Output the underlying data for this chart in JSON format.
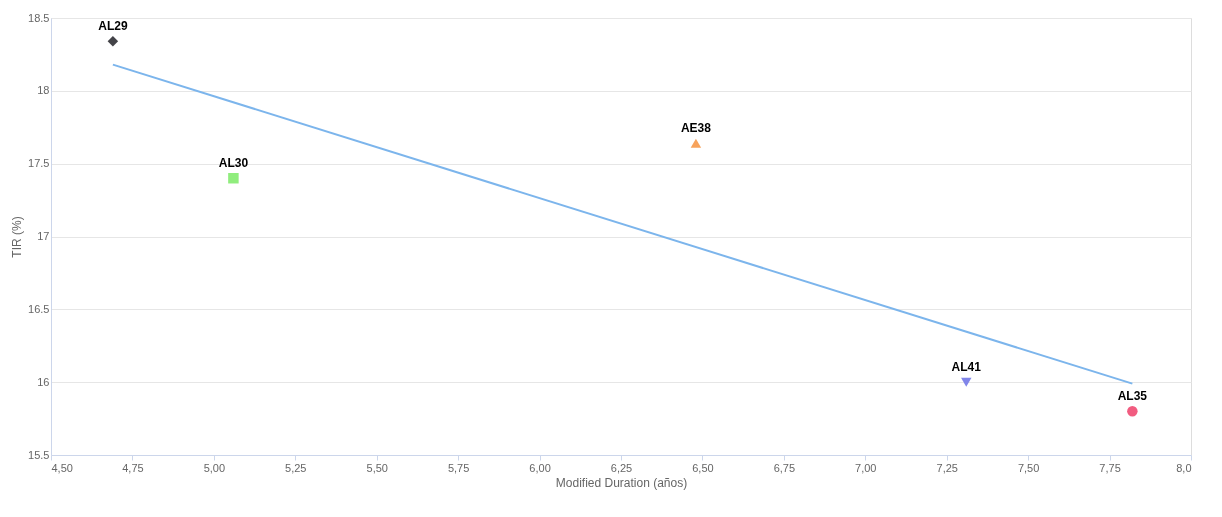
{
  "chart_data": {
    "type": "scatter",
    "xlabel": "Modified Duration (años)",
    "ylabel": "TIR (%)",
    "xlim": [
      4.5,
      8.0
    ],
    "xticks": [
      {
        "value": 4.5,
        "label": "4,50"
      },
      {
        "value": 4.75,
        "label": "4,75"
      },
      {
        "value": 5.0,
        "label": "5,00"
      },
      {
        "value": 5.25,
        "label": "5,25"
      },
      {
        "value": 5.5,
        "label": "5,50"
      },
      {
        "value": 5.75,
        "label": "5,75"
      },
      {
        "value": 6.0,
        "label": "6,00"
      },
      {
        "value": 6.25,
        "label": "6,25"
      },
      {
        "value": 6.5,
        "label": "6,50"
      },
      {
        "value": 6.75,
        "label": "6,75"
      },
      {
        "value": 7.0,
        "label": "7,00"
      },
      {
        "value": 7.25,
        "label": "7,25"
      },
      {
        "value": 7.5,
        "label": "7,50"
      },
      {
        "value": 7.75,
        "label": "7,75"
      },
      {
        "value": 8.0,
        "label": "8,0"
      }
    ],
    "ylim": [
      15.5,
      18.5
    ],
    "yticks": [
      15.5,
      16,
      16.5,
      17,
      17.5,
      18,
      18.5
    ],
    "grid": "y",
    "series": [
      {
        "type": "line",
        "color": "#7cb5ec",
        "x": [
          4.69,
          7.82
        ],
        "values": [
          18.18,
          15.99
        ]
      },
      {
        "name": "AL29",
        "color": "#434348",
        "marker": "diamond",
        "x": [
          4.69
        ],
        "values": [
          18.34
        ]
      },
      {
        "name": "AL30",
        "color": "#90ed7d",
        "marker": "square",
        "x": [
          5.06
        ],
        "values": [
          17.4
        ]
      },
      {
        "name": "AE38",
        "color": "#f7a35c",
        "marker": "triangle",
        "x": [
          6.48
        ],
        "values": [
          17.64
        ]
      },
      {
        "name": "AL41",
        "color": "#8085e9",
        "marker": "triangle-down",
        "x": [
          7.31
        ],
        "values": [
          16.0
        ]
      },
      {
        "name": "AL35",
        "color": "#f15c80",
        "marker": "circle",
        "x": [
          7.82
        ],
        "values": [
          15.8
        ]
      }
    ]
  }
}
